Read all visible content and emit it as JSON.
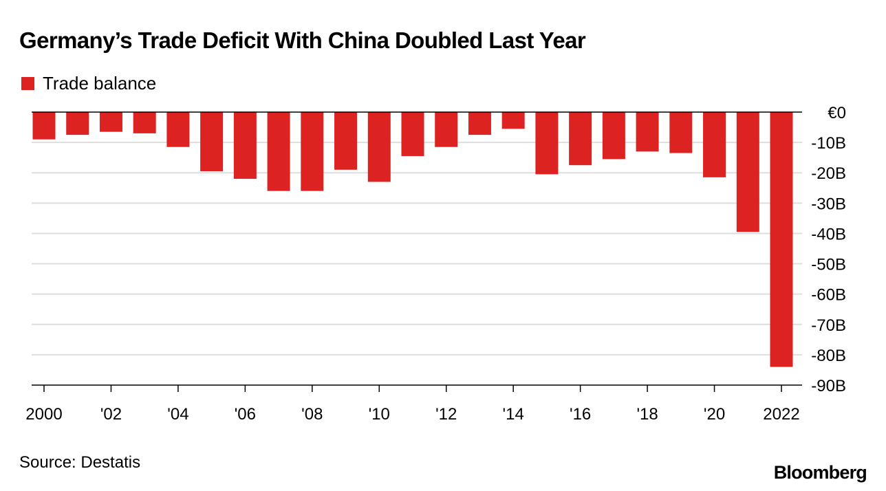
{
  "chart_data": {
    "type": "bar",
    "title": "Germany’s Trade Deficit With China Doubled Last Year",
    "legend": {
      "entries": [
        "Trade balance"
      ],
      "placement": "top-left"
    },
    "series": [
      {
        "name": "Trade balance",
        "color": "#dd2222",
        "x": [
          2000,
          2001,
          2002,
          2003,
          2004,
          2005,
          2006,
          2007,
          2008,
          2009,
          2010,
          2011,
          2012,
          2013,
          2014,
          2015,
          2016,
          2017,
          2018,
          2019,
          2020,
          2021,
          2022
        ],
        "values": [
          -9,
          -7.5,
          -6.5,
          -7,
          -11.5,
          -19.5,
          -22,
          -26,
          -26,
          -19,
          -23,
          -14.5,
          -11.5,
          -7.5,
          -5.5,
          -20.5,
          -17.5,
          -15.5,
          -13,
          -13.5,
          -21.5,
          -39.5,
          -84
        ]
      }
    ],
    "x_ticks": [
      {
        "value": 2000,
        "label": "2000"
      },
      {
        "value": 2002,
        "label": "'02"
      },
      {
        "value": 2004,
        "label": "'04"
      },
      {
        "value": 2006,
        "label": "'06"
      },
      {
        "value": 2008,
        "label": "'08"
      },
      {
        "value": 2010,
        "label": "'10"
      },
      {
        "value": 2012,
        "label": "'12"
      },
      {
        "value": 2014,
        "label": "'14"
      },
      {
        "value": 2016,
        "label": "'16"
      },
      {
        "value": 2018,
        "label": "'18"
      },
      {
        "value": 2020,
        "label": "'20"
      },
      {
        "value": 2022,
        "label": "2022"
      }
    ],
    "y_ticks": [
      {
        "value": 0,
        "label": "€0"
      },
      {
        "value": -10,
        "label": "-10B"
      },
      {
        "value": -20,
        "label": "-20B"
      },
      {
        "value": -30,
        "label": "-30B"
      },
      {
        "value": -40,
        "label": "-40B"
      },
      {
        "value": -50,
        "label": "-50B"
      },
      {
        "value": -60,
        "label": "-60B"
      },
      {
        "value": -70,
        "label": "-70B"
      },
      {
        "value": -80,
        "label": "-80B"
      },
      {
        "value": -90,
        "label": "-90B"
      }
    ],
    "xlim": [
      2000,
      2022
    ],
    "ylim": [
      -90,
      0
    ],
    "y_axis_side": "right",
    "grid": true,
    "xlabel": "",
    "ylabel": ""
  },
  "source": "Source: Destatis",
  "brand": "Bloomberg",
  "colors": {
    "bar": "#dd2222",
    "grid": "#dddddd",
    "axis": "#000000"
  }
}
